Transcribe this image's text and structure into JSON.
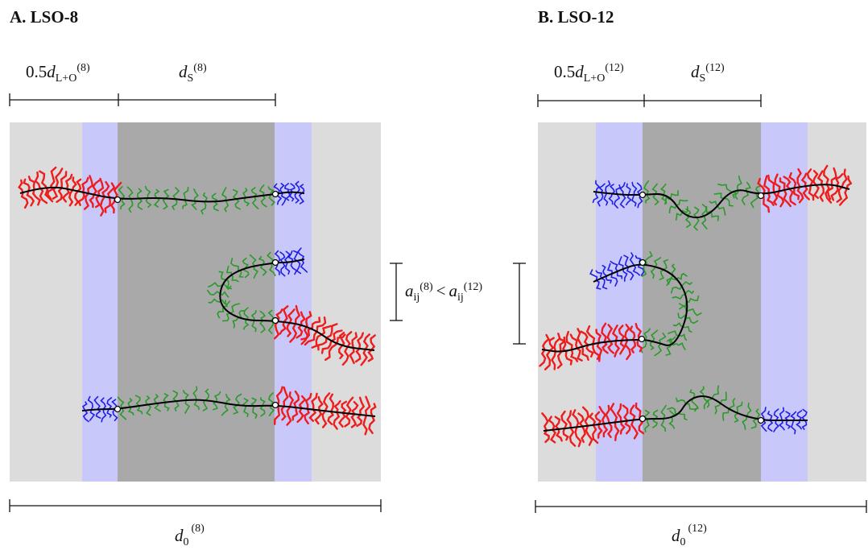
{
  "panels": [
    {
      "title": "A. LSO-8",
      "top_left": {
        "base": "0.5",
        "var": "d",
        "sub": "L+O",
        "sup": "(8)"
      },
      "top_right": {
        "var": "d",
        "sub": "S",
        "sup": "(8)"
      },
      "bottom": {
        "var": "d",
        "sub": "0",
        "sup": "(8)"
      }
    },
    {
      "title": "B. LSO-12",
      "top_left": {
        "base": "0.5",
        "var": "d",
        "sub": "L+O",
        "sup": "(12)"
      },
      "top_right": {
        "var": "d",
        "sub": "S",
        "sup": "(12)"
      },
      "bottom": {
        "var": "d",
        "sub": "0",
        "sup": "(12)"
      }
    }
  ],
  "comparison": {
    "var1": "a",
    "sub1": "ij",
    "sup1": "(8)",
    "op": "<",
    "var2": "a",
    "sub2": "ij",
    "sup2": "(12)"
  }
}
